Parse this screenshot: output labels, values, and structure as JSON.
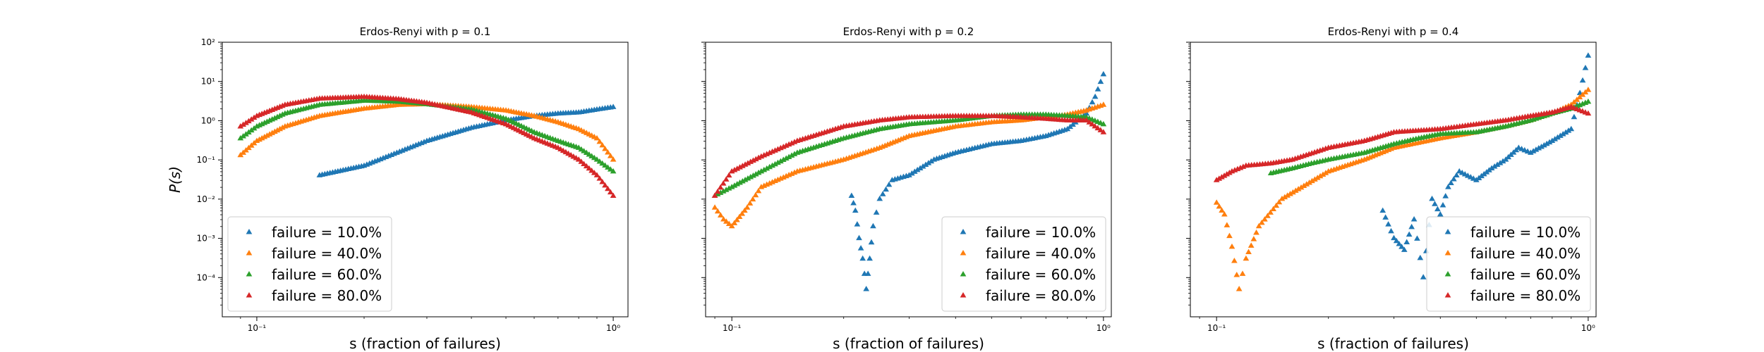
{
  "figure": {
    "shared_ylabel": "P(s)"
  },
  "chart_data": [
    {
      "type": "scatter",
      "title": "Erdos-Renyi with p = 0.1",
      "xlabel": "s (fraction of failures)",
      "ylabel": "P(s)",
      "x_scale": "log",
      "y_scale": "log",
      "xlim": [
        0.08,
        1.1
      ],
      "ylim": [
        1e-05,
        100
      ],
      "x_ticks": [
        {
          "value": 0.1,
          "label": "10⁻¹"
        },
        {
          "value": 1,
          "label": "10⁰"
        }
      ],
      "y_ticks": [
        {
          "value": 0.0001,
          "label": "10⁻⁴"
        },
        {
          "value": 0.001,
          "label": "10⁻³"
        },
        {
          "value": 0.01,
          "label": "10⁻²"
        },
        {
          "value": 0.1,
          "label": "10⁻¹"
        },
        {
          "value": 1,
          "label": "10⁰"
        },
        {
          "value": 10,
          "label": "10¹"
        },
        {
          "value": 100,
          "label": "10²"
        }
      ],
      "show_y_tick_labels": true,
      "legend_position": "lower-left",
      "grid": false,
      "series": [
        {
          "name": "failure = 10.0%",
          "color": "#1f77b4",
          "marker": "triangle-up",
          "x": [
            0.15,
            0.2,
            0.3,
            0.4,
            0.5,
            0.6,
            0.7,
            0.8,
            0.9,
            1.0
          ],
          "y": [
            0.04,
            0.07,
            0.3,
            0.65,
            1.0,
            1.3,
            1.5,
            1.6,
            1.9,
            2.2
          ]
        },
        {
          "name": "failure = 40.0%",
          "color": "#ff7f0e",
          "marker": "triangle-up",
          "x": [
            0.09,
            0.1,
            0.12,
            0.15,
            0.2,
            0.25,
            0.3,
            0.4,
            0.5,
            0.6,
            0.7,
            0.8,
            0.9,
            1.0
          ],
          "y": [
            0.13,
            0.3,
            0.7,
            1.3,
            2.0,
            2.5,
            2.6,
            2.2,
            1.8,
            1.3,
            0.9,
            0.6,
            0.35,
            0.1
          ]
        },
        {
          "name": "failure = 60.0%",
          "color": "#2ca02c",
          "marker": "triangle-up",
          "x": [
            0.09,
            0.1,
            0.12,
            0.15,
            0.2,
            0.25,
            0.3,
            0.4,
            0.5,
            0.6,
            0.7,
            0.8,
            0.9,
            1.0
          ],
          "y": [
            0.35,
            0.7,
            1.5,
            2.5,
            3.2,
            3.0,
            2.6,
            1.9,
            1.1,
            0.5,
            0.3,
            0.2,
            0.1,
            0.05
          ]
        },
        {
          "name": "failure = 80.0%",
          "color": "#d62728",
          "marker": "triangle-up",
          "x": [
            0.09,
            0.1,
            0.12,
            0.15,
            0.2,
            0.25,
            0.3,
            0.4,
            0.5,
            0.6,
            0.7,
            0.8,
            0.9,
            1.0
          ],
          "y": [
            0.7,
            1.3,
            2.5,
            3.6,
            4.0,
            3.5,
            2.8,
            1.6,
            0.8,
            0.35,
            0.2,
            0.1,
            0.04,
            0.012
          ]
        }
      ]
    },
    {
      "type": "scatter",
      "title": "Erdos-Renyi with p = 0.2",
      "xlabel": "s (fraction of failures)",
      "ylabel": "",
      "x_scale": "log",
      "y_scale": "log",
      "xlim": [
        0.085,
        1.05
      ],
      "ylim": [
        1e-05,
        100
      ],
      "x_ticks": [
        {
          "value": 0.1,
          "label": "10⁻¹"
        },
        {
          "value": 1,
          "label": "10⁰"
        }
      ],
      "y_ticks": [
        {
          "value": 0.0001,
          "label": ""
        },
        {
          "value": 0.001,
          "label": ""
        },
        {
          "value": 0.01,
          "label": ""
        },
        {
          "value": 0.1,
          "label": ""
        },
        {
          "value": 1,
          "label": ""
        },
        {
          "value": 10,
          "label": ""
        },
        {
          "value": 100,
          "label": ""
        }
      ],
      "show_y_tick_labels": false,
      "legend_position": "lower-right",
      "grid": false,
      "series": [
        {
          "name": "failure = 10.0%",
          "color": "#1f77b4",
          "marker": "triangle-up",
          "x": [
            0.21,
            0.215,
            0.22,
            0.225,
            0.23,
            0.235,
            0.24,
            0.25,
            0.27,
            0.3,
            0.35,
            0.4,
            0.5,
            0.6,
            0.7,
            0.8,
            0.9,
            0.95,
            1.0
          ],
          "y": [
            0.012,
            0.005,
            0.001,
            0.0003,
            5e-05,
            0.0003,
            0.002,
            0.01,
            0.03,
            0.04,
            0.1,
            0.15,
            0.25,
            0.3,
            0.4,
            0.6,
            1.5,
            4.0,
            15.0
          ]
        },
        {
          "name": "failure = 40.0%",
          "color": "#ff7f0e",
          "marker": "triangle-up",
          "x": [
            0.09,
            0.095,
            0.1,
            0.11,
            0.12,
            0.15,
            0.2,
            0.25,
            0.3,
            0.4,
            0.5,
            0.6,
            0.7,
            0.8,
            0.9,
            1.0
          ],
          "y": [
            0.006,
            0.003,
            0.002,
            0.006,
            0.02,
            0.05,
            0.1,
            0.2,
            0.4,
            0.7,
            0.9,
            1.0,
            1.2,
            1.4,
            1.8,
            2.5
          ]
        },
        {
          "name": "failure = 60.0%",
          "color": "#2ca02c",
          "marker": "triangle-up",
          "x": [
            0.09,
            0.1,
            0.12,
            0.15,
            0.2,
            0.25,
            0.3,
            0.4,
            0.5,
            0.6,
            0.7,
            0.8,
            0.9,
            1.0
          ],
          "y": [
            0.012,
            0.02,
            0.05,
            0.15,
            0.35,
            0.6,
            0.8,
            1.0,
            1.3,
            1.4,
            1.4,
            1.3,
            1.2,
            0.8
          ]
        },
        {
          "name": "failure = 80.0%",
          "color": "#d62728",
          "marker": "triangle-up",
          "x": [
            0.09,
            0.1,
            0.12,
            0.15,
            0.2,
            0.25,
            0.3,
            0.4,
            0.5,
            0.6,
            0.7,
            0.8,
            0.9,
            1.0
          ],
          "y": [
            0.012,
            0.05,
            0.12,
            0.3,
            0.7,
            1.0,
            1.2,
            1.3,
            1.3,
            1.2,
            1.1,
            1.0,
            1.0,
            0.5
          ]
        }
      ]
    },
    {
      "type": "scatter",
      "title": "Erdos-Renyi with p = 0.4",
      "xlabel": "s (fraction of failures)",
      "ylabel": "",
      "x_scale": "log",
      "y_scale": "log",
      "xlim": [
        0.085,
        1.05
      ],
      "ylim": [
        1e-05,
        100
      ],
      "x_ticks": [
        {
          "value": 0.1,
          "label": "10⁻¹"
        },
        {
          "value": 1,
          "label": "10⁰"
        }
      ],
      "y_ticks": [
        {
          "value": 0.0001,
          "label": ""
        },
        {
          "value": 0.001,
          "label": ""
        },
        {
          "value": 0.01,
          "label": ""
        },
        {
          "value": 0.1,
          "label": ""
        },
        {
          "value": 1,
          "label": ""
        },
        {
          "value": 10,
          "label": ""
        },
        {
          "value": 100,
          "label": ""
        }
      ],
      "show_y_tick_labels": false,
      "legend_position": "lower-right",
      "grid": false,
      "series": [
        {
          "name": "failure = 10.0%",
          "color": "#1f77b4",
          "marker": "triangle-up",
          "x": [
            0.28,
            0.3,
            0.32,
            0.34,
            0.36,
            0.38,
            0.4,
            0.42,
            0.45,
            0.5,
            0.55,
            0.6,
            0.65,
            0.7,
            0.8,
            0.9,
            0.95,
            1.0
          ],
          "y": [
            0.005,
            0.001,
            0.0005,
            0.003,
            0.0001,
            0.01,
            0.004,
            0.02,
            0.05,
            0.03,
            0.06,
            0.1,
            0.2,
            0.15,
            0.3,
            0.6,
            5.0,
            45.0
          ]
        },
        {
          "name": "failure = 40.0%",
          "color": "#ff7f0e",
          "marker": "triangle-up",
          "x": [
            0.1,
            0.105,
            0.11,
            0.115,
            0.12,
            0.13,
            0.15,
            0.2,
            0.25,
            0.3,
            0.4,
            0.5,
            0.6,
            0.7,
            0.8,
            0.9,
            1.0
          ],
          "y": [
            0.008,
            0.004,
            0.0006,
            5e-05,
            0.0003,
            0.002,
            0.01,
            0.05,
            0.1,
            0.2,
            0.35,
            0.5,
            0.7,
            1.0,
            1.5,
            2.5,
            6.0
          ]
        },
        {
          "name": "failure = 60.0%",
          "color": "#2ca02c",
          "marker": "triangle-up",
          "x": [
            0.14,
            0.16,
            0.18,
            0.2,
            0.25,
            0.3,
            0.35,
            0.4,
            0.5,
            0.6,
            0.7,
            0.8,
            0.9,
            1.0
          ],
          "y": [
            0.045,
            0.06,
            0.08,
            0.1,
            0.15,
            0.25,
            0.35,
            0.45,
            0.5,
            0.7,
            1.0,
            1.5,
            2.0,
            3.0
          ]
        },
        {
          "name": "failure = 80.0%",
          "color": "#d62728",
          "marker": "triangle-up",
          "x": [
            0.1,
            0.11,
            0.12,
            0.14,
            0.16,
            0.2,
            0.25,
            0.3,
            0.4,
            0.5,
            0.6,
            0.7,
            0.8,
            0.9,
            1.0
          ],
          "y": [
            0.03,
            0.05,
            0.07,
            0.08,
            0.1,
            0.2,
            0.3,
            0.5,
            0.6,
            0.8,
            1.0,
            1.3,
            1.6,
            2.2,
            1.5
          ]
        }
      ]
    }
  ]
}
